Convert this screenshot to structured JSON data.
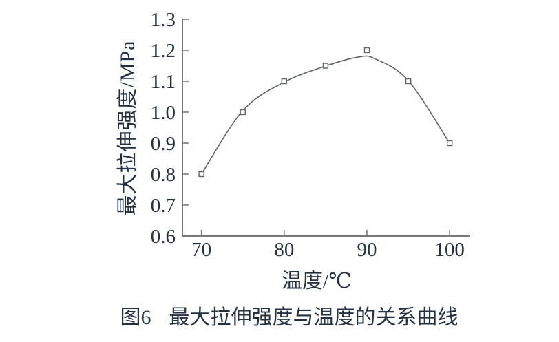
{
  "chart_data": {
    "type": "scatter",
    "title": "",
    "xlabel": "温度/℃",
    "ylabel": "最大拉伸强度/MPa",
    "x": [
      70,
      75,
      80,
      85,
      90,
      95,
      100
    ],
    "y": [
      0.8,
      1.0,
      1.1,
      1.15,
      1.2,
      1.1,
      0.9
    ],
    "fitted_curve": [
      [
        70,
        0.8
      ],
      [
        75,
        1.005
      ],
      [
        80,
        1.097
      ],
      [
        85,
        1.149
      ],
      [
        89,
        1.178
      ],
      [
        91,
        1.172
      ],
      [
        95,
        1.102
      ],
      [
        100,
        0.9
      ]
    ],
    "xticks": [
      70,
      80,
      90,
      100
    ],
    "yticks": [
      0.6,
      0.7,
      0.8,
      0.9,
      1.0,
      1.1,
      1.2,
      1.3
    ],
    "xlim": [
      67.7,
      102.4
    ],
    "ylim": [
      0.6,
      1.3
    ],
    "grid": false,
    "legend": "none",
    "marker": "open-square",
    "colors": {
      "axis": "#7a7a7a",
      "curve": "#5f646a",
      "marker_stroke": "#5f646a",
      "text": "#253140"
    }
  },
  "caption": {
    "number": "图6",
    "title": "最大拉伸强度与温度的关系曲线"
  }
}
